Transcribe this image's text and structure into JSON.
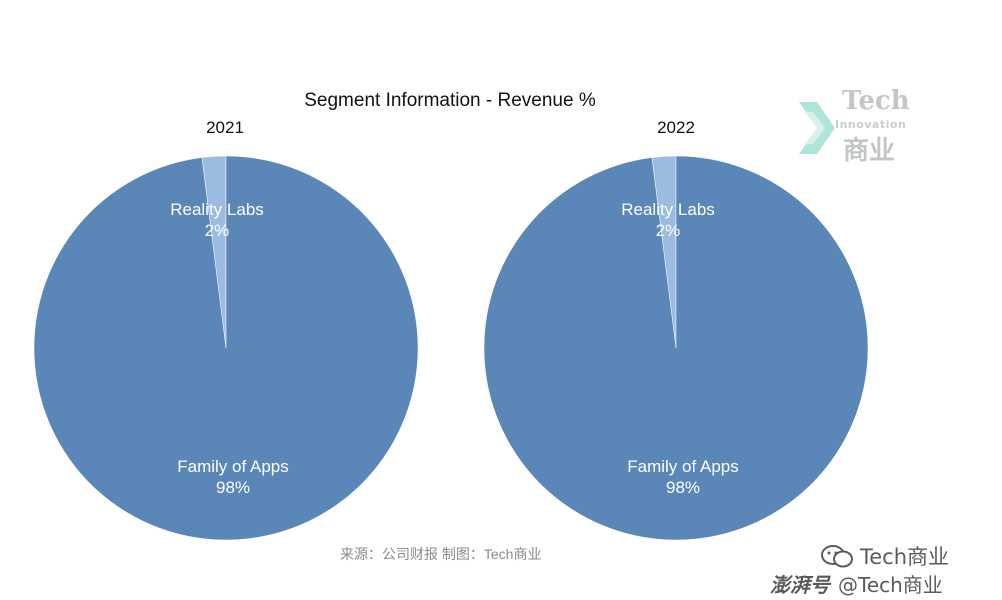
{
  "chart_data": [
    {
      "type": "pie",
      "title": "Segment Information - Revenue %",
      "subtitle": "2021",
      "slices": [
        {
          "label": "Reality Labs",
          "value": 2,
          "display": "2%",
          "color": "#9bbce0"
        },
        {
          "label": "Family of Apps",
          "value": 98,
          "display": "98%",
          "color": "#5b86b8"
        }
      ]
    },
    {
      "type": "pie",
      "title": "Segment Information - Revenue %",
      "subtitle": "2022",
      "slices": [
        {
          "label": "Reality Labs",
          "value": 2,
          "display": "2%",
          "color": "#9bbce0"
        },
        {
          "label": "Family of Apps",
          "value": 98,
          "display": "98%",
          "color": "#5b86b8"
        }
      ]
    }
  ],
  "chart_title": "Segment Information - Revenue %",
  "logo": {
    "line1": "Tech",
    "line2": "Innovation",
    "line3": "商业"
  },
  "source_note": "来源：公司财报 制图：Tech商业",
  "watermark": {
    "line1": "Tech商业",
    "line2_brand": "澎湃号",
    "line2_handle": "@Tech商业"
  }
}
